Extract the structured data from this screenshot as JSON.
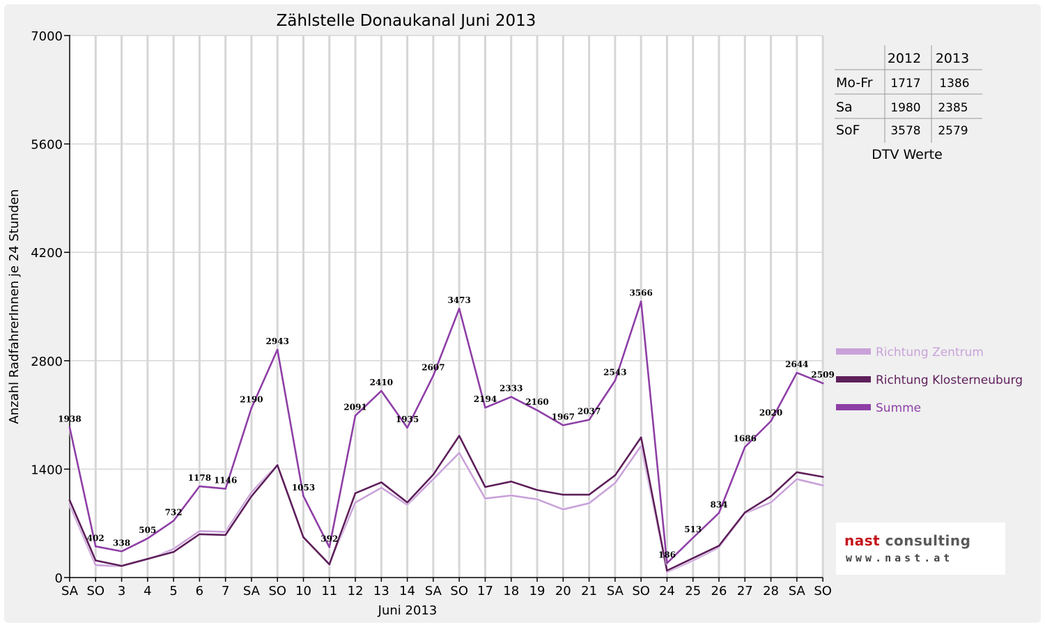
{
  "chart_data": {
    "type": "line",
    "title": "Zählstelle Donaukanal Juni 2013",
    "xlabel": "Juni 2013",
    "ylabel": "Anzahl RadfahrerInnen je 24 Stunden",
    "ylim": [
      0,
      7000
    ],
    "yticks": [
      "0",
      "1400",
      "2800",
      "4200",
      "5600",
      "7000"
    ],
    "categories": [
      "SA",
      "SO",
      "3",
      "4",
      "5",
      "6",
      "7",
      "SA",
      "SO",
      "10",
      "11",
      "12",
      "13",
      "14",
      "SA",
      "SO",
      "17",
      "18",
      "19",
      "20",
      "21",
      "SA",
      "SO",
      "24",
      "25",
      "26",
      "27",
      "28",
      "SA",
      "SO"
    ],
    "weekend_categories": [
      "SO"
    ],
    "grid": "vertical",
    "legend_position": "right",
    "series": [
      {
        "name": "Richtung Zentrum",
        "color": "#c9a2d9",
        "values": [
          940,
          160,
          145,
          230,
          370,
          600,
          590,
          1100,
          1460,
          520,
          180,
          970,
          1160,
          940,
          1270,
          1610,
          1020,
          1060,
          1010,
          880,
          960,
          1220,
          1700,
          70,
          220,
          390,
          830,
          970,
          1270,
          1190
        ]
      },
      {
        "name": "Richtung Klosterneuburg",
        "color": "#5e1f5a",
        "values": [
          998,
          220,
          150,
          240,
          330,
          560,
          550,
          1050,
          1450,
          520,
          170,
          1090,
          1230,
          970,
          1330,
          1830,
          1170,
          1240,
          1130,
          1070,
          1070,
          1320,
          1810,
          90,
          250,
          410,
          840,
          1050,
          1360,
          1300
        ]
      },
      {
        "name": "Summe",
        "color": "#8e3fa6",
        "values": [
          1938,
          402,
          338,
          505,
          732,
          1178,
          1146,
          2190,
          2943,
          1053,
          392,
          2091,
          2410,
          1935,
          2607,
          3473,
          2194,
          2333,
          2160,
          1967,
          2037,
          2543,
          3566,
          186,
          513,
          834,
          1686,
          2020,
          2644,
          2509
        ],
        "labels": [
          "1938",
          "402",
          "338",
          "505",
          "732",
          "1178",
          "1146",
          "2190",
          "2943",
          "1053",
          "392",
          "2091",
          "2410",
          "1935",
          "2607",
          "3473",
          "2194",
          "2333",
          "2160",
          "1967",
          "2037",
          "2543",
          "3566",
          "186",
          "513",
          "834",
          "1686",
          "2020",
          "2644",
          "2509"
        ]
      }
    ]
  },
  "dtv_table": {
    "headers": [
      "2012",
      "2013"
    ],
    "rows": [
      {
        "label": "Mo-Fr",
        "v2012": "1717",
        "v2013": "1386"
      },
      {
        "label": "Sa",
        "v2012": "1980",
        "v2013": "2385"
      },
      {
        "label": "SoF",
        "v2012": "3578",
        "v2013": "2579"
      }
    ],
    "caption": "DTV Werte"
  },
  "logo": {
    "part1": "nast",
    "part2": " consulting",
    "url": "www.nast.at"
  },
  "colors": {
    "weekend_tick": "#ff0000",
    "grid": "#d6d6d6"
  }
}
